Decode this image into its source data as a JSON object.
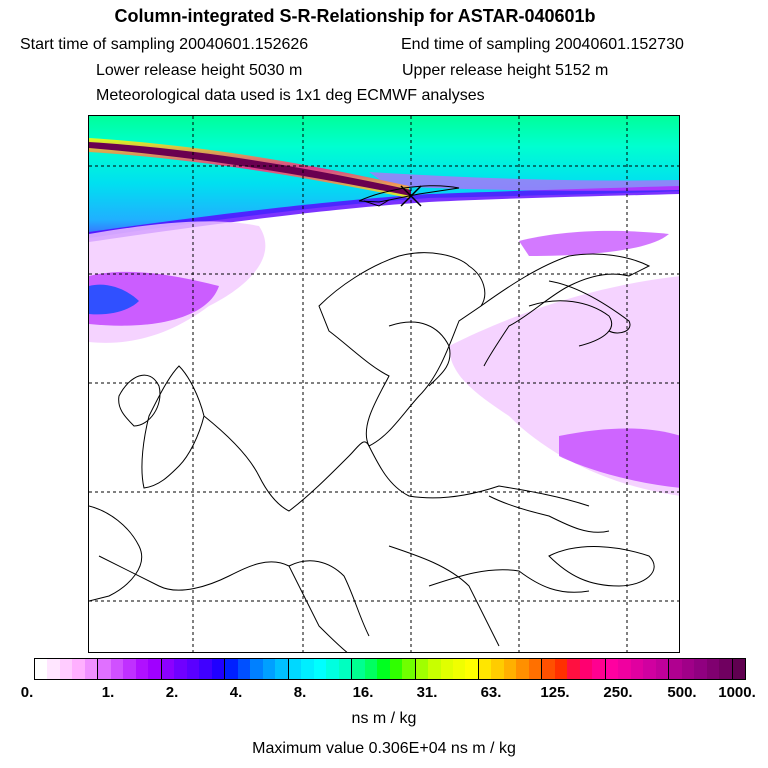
{
  "title": "Column-integrated S-R-Relationship for ASTAR-040601b",
  "start_time": "Start time of sampling 20040601.152626",
  "end_time": "End time of sampling 20040601.152730",
  "lower_height": "Lower release height 5030 m",
  "upper_height": "Upper release height 5152 m",
  "met_data": "Meteorological data used is 1x1 deg ECMWF analyses",
  "colorbar": {
    "labels": [
      "0.",
      "1.",
      "2.",
      "4.",
      "8.",
      "16.",
      "31.",
      "63.",
      "125.",
      "250.",
      "500.",
      "1000."
    ],
    "colors": [
      "#ffffff",
      "#ffe6ff",
      "#ffccff",
      "#ffb0ff",
      "#f090ff",
      "#e070ff",
      "#d050ff",
      "#c030ff",
      "#b010ff",
      "#a000ff",
      "#8c00ff",
      "#7000ff",
      "#5a00ff",
      "#4000ff",
      "#2000ff",
      "#0020ff",
      "#0050ff",
      "#0080ff",
      "#00a0ff",
      "#00c0ff",
      "#00d8ff",
      "#00eeff",
      "#00ffff",
      "#00ffe0",
      "#00ffc0",
      "#00ff90",
      "#00ff60",
      "#00ff20",
      "#30ff00",
      "#70ff00",
      "#a0ff00",
      "#c8ff00",
      "#e0ff00",
      "#f0ff00",
      "#ffff00",
      "#ffe600",
      "#ffcc00",
      "#ffb000",
      "#ff9000",
      "#ff7000",
      "#ff5000",
      "#ff3000",
      "#ff1040",
      "#ff0070",
      "#ff0090",
      "#ff00a0",
      "#f000a0",
      "#e000a0",
      "#d000a0",
      "#c0009a",
      "#b00090",
      "#a00088",
      "#900080",
      "#800070",
      "#700060",
      "#600050"
    ]
  },
  "units": "ns m / kg",
  "max_value": "Maximum value  0.306E+04 ns m / kg",
  "map": {
    "source_marker": "x-marker",
    "colors": {
      "plume_dark": "#6a0050",
      "band_cyan": "#00e6f0",
      "band_green": "#00ff90",
      "band_blue": "#1060ff",
      "violet": "#c040ff",
      "lilac": "#f2c8ff"
    }
  }
}
